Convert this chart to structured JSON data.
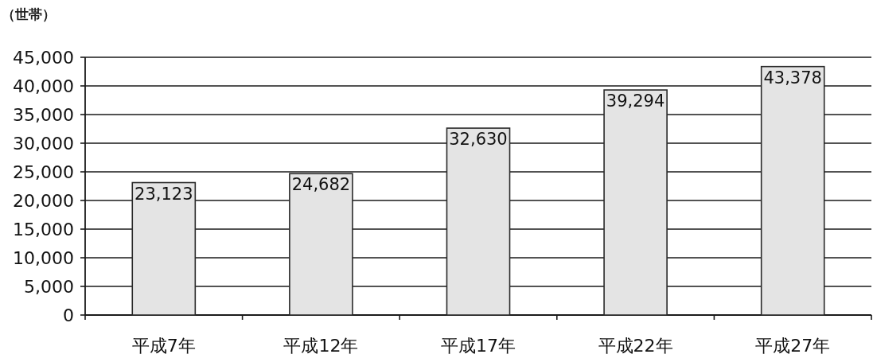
{
  "chart_data": {
    "type": "bar",
    "ylabel": "（世帯）",
    "categories": [
      "平成7年",
      "平成12年",
      "平成17年",
      "平成22年",
      "平成27年"
    ],
    "values": [
      23123,
      24682,
      32630,
      39294,
      43378
    ],
    "value_labels": [
      "23,123",
      "24,682",
      "32,630",
      "39,294",
      "43,378"
    ],
    "color": "#e4e4e4",
    "ylim": [
      0,
      45000
    ],
    "yticks": [
      0,
      {
        "value": 5000,
        "label": "5,000"
      },
      {
        "value": 10000,
        "label": "10,000"
      },
      {
        "value": 15000,
        "label": "15,000"
      },
      {
        "value": 20000,
        "label": "20,000"
      },
      {
        "value": 25000,
        "label": "25,000"
      },
      {
        "value": 30000,
        "label": "30,000"
      },
      {
        "value": 35000,
        "label": "35,000"
      },
      {
        "value": 40000,
        "label": "40,000"
      },
      {
        "value": 45000,
        "label": "45,000"
      }
    ],
    "grid": "y"
  }
}
